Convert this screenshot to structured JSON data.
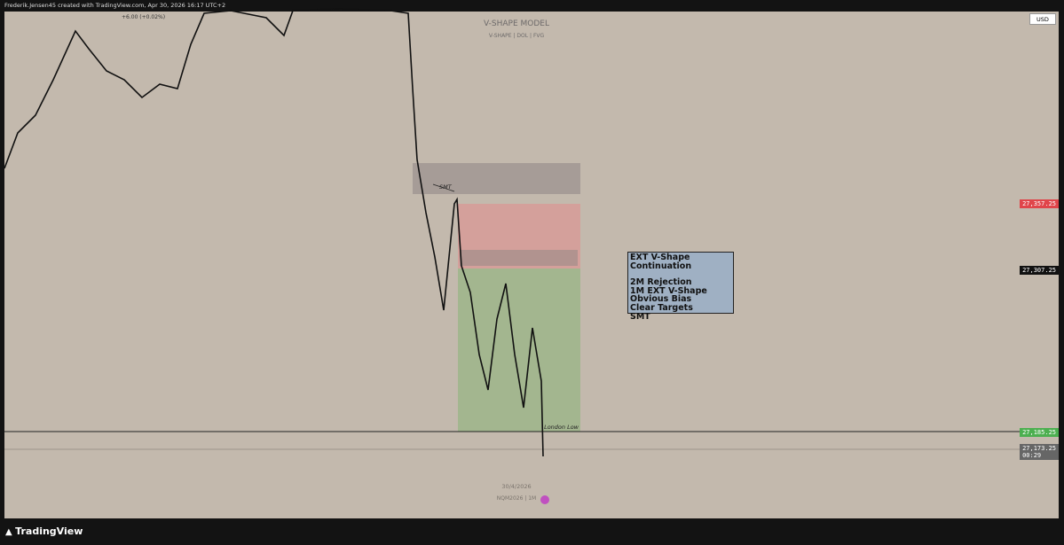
{
  "header": {
    "credit": "Frederik.Jensen45 created with TradingView.com, Apr 30, 2026 16:17 UTC+2",
    "change": "+6.00 (+0.02%)"
  },
  "chart": {
    "title": "V-SHAPE MODEL",
    "subtitle": "V-SHAPE | DOL | FVG",
    "currency": "USD",
    "smt_label": "SMT",
    "low_label": "London Low",
    "date": "30/4/2026",
    "symbol": "NQM2026 | 1M"
  },
  "info_box": {
    "heading": "EXT V-Shape Continuation",
    "lines": [
      "2M Rejection",
      "1M EXT V-Shape",
      "Obvious Bias",
      "Clear Targets",
      "SMT"
    ]
  },
  "price_labels": {
    "stop": "27,357.25",
    "entry": "27,307.25",
    "target": "27,185.25",
    "last": "27,173.25",
    "countdown": "00:29"
  },
  "footer": {
    "brand": "TradingView"
  }
}
